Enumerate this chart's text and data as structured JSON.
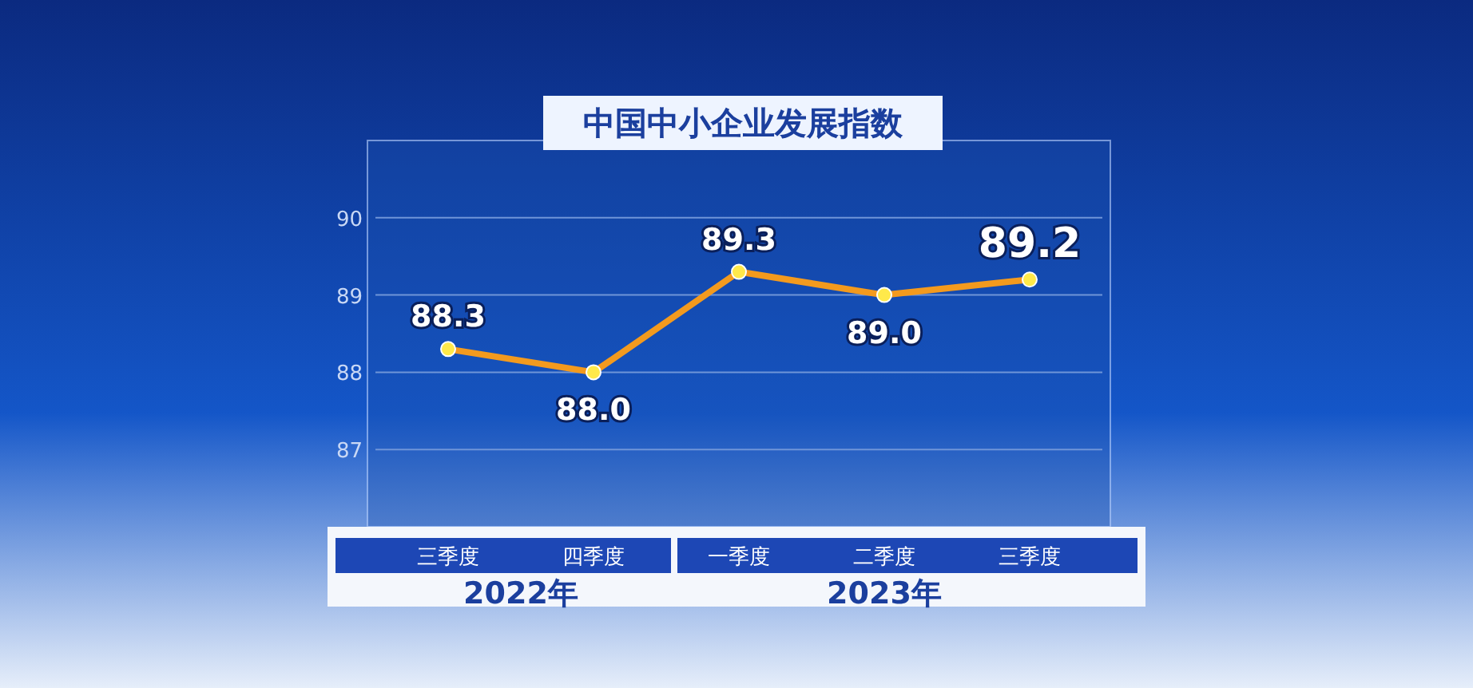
{
  "chart_data": {
    "type": "line",
    "title": "中国中小企业发展指数",
    "categories": [
      "三季度",
      "四季度",
      "一季度",
      "二季度",
      "三季度"
    ],
    "series": [
      {
        "color": "#f39a1e",
        "values": [
          88.3,
          88.0,
          89.3,
          89.0,
          89.2
        ],
        "value_labels": [
          "88.3",
          "88.0",
          "89.3",
          "89.0",
          "89.2"
        ]
      }
    ],
    "ylim": [
      86,
      91
    ],
    "yticks": [
      87,
      88,
      89,
      90
    ],
    "grid": "y",
    "marker": "circle",
    "line_style": "solid",
    "annotations": [
      "2022年",
      "2023年"
    ]
  }
}
